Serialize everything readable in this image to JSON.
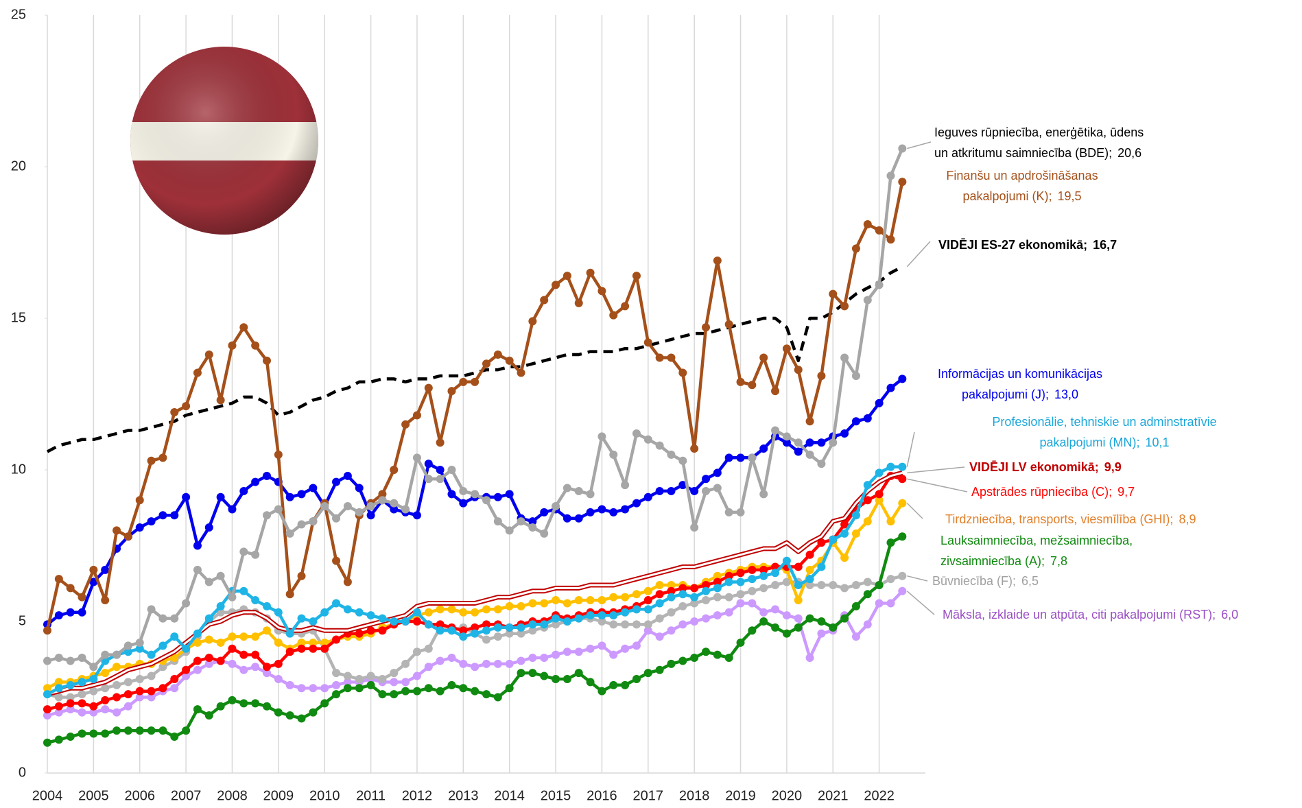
{
  "chart_data": {
    "type": "line",
    "x": [
      2004,
      2004.25,
      2004.5,
      2004.75,
      2005,
      2005.25,
      2005.5,
      2005.75,
      2006,
      2006.25,
      2006.5,
      2006.75,
      2007,
      2007.25,
      2007.5,
      2007.75,
      2008,
      2008.25,
      2008.5,
      2008.75,
      2009,
      2009.25,
      2009.5,
      2009.75,
      2010,
      2010.25,
      2010.5,
      2010.75,
      2011,
      2011.25,
      2011.5,
      2011.75,
      2012,
      2012.25,
      2012.5,
      2012.75,
      2013,
      2013.25,
      2013.5,
      2013.75,
      2014,
      2014.25,
      2014.5,
      2014.75,
      2015,
      2015.25,
      2015.5,
      2015.75,
      2016,
      2016.25,
      2016.5,
      2016.75,
      2017,
      2017.25,
      2017.5,
      2017.75,
      2018,
      2018.25,
      2018.5,
      2018.75,
      2019,
      2019.25,
      2019.5,
      2019.75,
      2020,
      2020.25,
      2020.5,
      2020.75,
      2021,
      2021.25,
      2021.5,
      2021.75,
      2022,
      2022.25,
      2022.5
    ],
    "xlim": [
      2004,
      2023
    ],
    "xticks": [
      2004,
      2005,
      2006,
      2007,
      2008,
      2009,
      2010,
      2011,
      2012,
      2013,
      2014,
      2015,
      2016,
      2017,
      2018,
      2019,
      2020,
      2021,
      2022
    ],
    "ylim": [
      0,
      25
    ],
    "yticks": [
      0,
      5,
      10,
      15,
      20,
      25
    ],
    "grid": "x",
    "series": [
      {
        "name": "Ieguves rūpniecība, enerģētika, ūdens\nun atkritumu saimniecība (BDE);",
        "end_label": "20,6",
        "color": "#a6a6a6",
        "label_color": "#000000",
        "markers": true,
        "line_style": "solid",
        "values": [
          3.7,
          3.8,
          3.7,
          3.8,
          3.5,
          3.9,
          3.9,
          4.2,
          4.3,
          5.4,
          5.1,
          5.1,
          5.6,
          6.7,
          6.3,
          6.5,
          5.8,
          7.3,
          7.2,
          8.5,
          8.7,
          7.9,
          8.2,
          8.3,
          8.8,
          8.4,
          8.8,
          8.6,
          8.8,
          9.0,
          8.9,
          8.7,
          10.4,
          9.7,
          9.7,
          10.0,
          9.3,
          9.2,
          9.0,
          8.3,
          8.0,
          8.3,
          8.1,
          7.9,
          8.8,
          9.4,
          9.3,
          9.2,
          11.1,
          10.5,
          9.5,
          11.2,
          11.0,
          10.8,
          10.5,
          10.3,
          8.1,
          9.3,
          9.4,
          8.6,
          8.6,
          10.4,
          9.2,
          11.3,
          11.1,
          10.9,
          10.5,
          10.2,
          10.9,
          13.7,
          13.1,
          15.6,
          16.1,
          19.7,
          20.6
        ]
      },
      {
        "name": "Finanšu un apdrošināšanas\npakalpojumi (K);",
        "end_label": "19,5",
        "color": "#a5501a",
        "label_color": "#a5501a",
        "markers": true,
        "line_style": "solid",
        "values": [
          4.7,
          6.4,
          6.1,
          5.8,
          6.7,
          5.7,
          8.0,
          7.8,
          9.0,
          10.3,
          10.4,
          11.9,
          12.1,
          13.2,
          13.8,
          12.3,
          14.1,
          14.7,
          14.1,
          13.6,
          10.5,
          5.9,
          6.5,
          8.3,
          8.9,
          7.0,
          6.3,
          8.5,
          8.9,
          9.2,
          10.0,
          11.5,
          11.8,
          12.7,
          10.9,
          12.6,
          12.9,
          12.9,
          13.5,
          13.8,
          13.6,
          13.2,
          14.9,
          15.6,
          16.1,
          16.4,
          15.5,
          16.5,
          15.9,
          15.1,
          15.4,
          16.4,
          14.2,
          13.7,
          13.7,
          13.2,
          10.7,
          14.7,
          16.9,
          14.8,
          12.9,
          12.8,
          13.7,
          12.6,
          14.0,
          13.3,
          11.6,
          13.1,
          15.8,
          15.4,
          17.3,
          18.1,
          17.9,
          17.6,
          19.5
        ]
      },
      {
        "name": "VIDĒJI ES-27 ekonomikā;",
        "end_label": "16,7",
        "color": "#000000",
        "label_color": "#000000",
        "markers": false,
        "line_style": "dashed",
        "values": [
          10.6,
          10.8,
          10.9,
          11.0,
          11.0,
          11.1,
          11.2,
          11.3,
          11.3,
          11.4,
          11.5,
          11.6,
          11.8,
          11.9,
          12.0,
          12.1,
          12.2,
          12.4,
          12.4,
          12.2,
          11.8,
          11.9,
          12.1,
          12.3,
          12.4,
          12.6,
          12.7,
          12.9,
          12.9,
          13.0,
          13.0,
          12.9,
          13.0,
          13.0,
          13.1,
          13.1,
          13.1,
          13.2,
          13.3,
          13.3,
          13.4,
          13.4,
          13.5,
          13.6,
          13.7,
          13.8,
          13.8,
          13.9,
          13.9,
          13.9,
          14.0,
          14.0,
          14.1,
          14.2,
          14.3,
          14.4,
          14.5,
          14.5,
          14.6,
          14.7,
          14.8,
          14.9,
          15.0,
          15.0,
          14.7,
          13.6,
          15.0,
          15.0,
          15.2,
          15.5,
          15.8,
          16.0,
          16.2,
          16.5,
          16.7
        ]
      },
      {
        "name": "Informācijas un komunikācijas\npakalpojumi (J);",
        "end_label": "13,0",
        "color": "#0000ee",
        "label_color": "#0000ee",
        "markers": true,
        "line_style": "solid",
        "values": [
          4.9,
          5.2,
          5.3,
          5.3,
          6.3,
          6.7,
          7.4,
          7.8,
          8.1,
          8.3,
          8.5,
          8.5,
          9.1,
          7.5,
          8.1,
          9.1,
          8.7,
          9.3,
          9.6,
          9.8,
          9.6,
          9.1,
          9.2,
          9.4,
          8.8,
          9.6,
          9.8,
          9.4,
          8.5,
          9.0,
          8.7,
          8.6,
          8.5,
          10.2,
          10.0,
          9.2,
          8.9,
          9.1,
          9.1,
          9.1,
          9.2,
          8.4,
          8.3,
          8.6,
          8.7,
          8.4,
          8.4,
          8.6,
          8.7,
          8.6,
          8.7,
          8.9,
          9.1,
          9.3,
          9.3,
          9.5,
          9.3,
          9.7,
          9.9,
          10.4,
          10.4,
          10.4,
          10.7,
          11.1,
          10.9,
          10.6,
          10.9,
          10.9,
          11.1,
          11.2,
          11.6,
          11.7,
          12.2,
          12.7,
          13.0
        ]
      },
      {
        "name": "Profesionālie, tehniskie un adminstratīvie\npakalpojumi (MN);",
        "end_label": "10,1",
        "color": "#1fb4e6",
        "label_color": "#1aa6d9",
        "markers": true,
        "line_style": "solid",
        "values": [
          2.6,
          2.8,
          2.9,
          3.0,
          3.1,
          3.7,
          3.9,
          4.0,
          4.1,
          3.9,
          4.2,
          4.5,
          4.1,
          4.6,
          5.1,
          5.5,
          6.0,
          6.0,
          5.7,
          5.5,
          5.3,
          4.6,
          5.1,
          5.0,
          5.3,
          5.6,
          5.4,
          5.3,
          5.2,
          5.1,
          5.0,
          5.0,
          5.3,
          4.9,
          4.7,
          4.7,
          4.5,
          4.6,
          4.7,
          4.8,
          4.8,
          4.8,
          4.9,
          4.9,
          5.1,
          5.0,
          5.1,
          5.2,
          5.2,
          5.2,
          5.3,
          5.4,
          5.4,
          5.6,
          5.8,
          5.9,
          5.8,
          6.0,
          6.1,
          6.3,
          6.3,
          6.4,
          6.5,
          6.6,
          7.0,
          6.2,
          6.4,
          6.8,
          7.7,
          7.9,
          8.5,
          9.5,
          9.9,
          10.1,
          10.1
        ]
      },
      {
        "name": "VIDĒJI LV ekonomikā;",
        "end_label": "9,9",
        "color": "#c00000",
        "label_color": "#c00000",
        "markers": false,
        "line_style": "double",
        "values": [
          2.6,
          2.7,
          2.8,
          2.8,
          2.9,
          3.0,
          3.2,
          3.4,
          3.5,
          3.6,
          3.8,
          4.0,
          4.3,
          4.6,
          4.9,
          5.0,
          5.2,
          5.3,
          5.3,
          5.1,
          4.8,
          4.7,
          4.7,
          4.8,
          4.7,
          4.7,
          4.7,
          4.8,
          4.9,
          5.0,
          5.1,
          5.2,
          5.5,
          5.6,
          5.6,
          5.6,
          5.6,
          5.6,
          5.7,
          5.8,
          5.8,
          5.9,
          6.0,
          6.0,
          6.1,
          6.1,
          6.1,
          6.2,
          6.2,
          6.2,
          6.3,
          6.4,
          6.5,
          6.6,
          6.7,
          6.8,
          6.8,
          6.9,
          7.0,
          7.1,
          7.2,
          7.3,
          7.4,
          7.4,
          7.6,
          7.3,
          7.6,
          7.8,
          8.3,
          8.4,
          8.9,
          9.3,
          9.6,
          9.8,
          9.9
        ]
      },
      {
        "name": "Apstrādes rūpniecība (C);",
        "end_label": "9,7",
        "color": "#ff0000",
        "label_color": "#ff0000",
        "markers": true,
        "line_style": "solid",
        "values": [
          2.1,
          2.2,
          2.3,
          2.3,
          2.2,
          2.4,
          2.5,
          2.6,
          2.7,
          2.7,
          2.8,
          3.1,
          3.4,
          3.7,
          3.8,
          3.7,
          4.1,
          3.9,
          3.9,
          3.5,
          3.6,
          4.0,
          4.1,
          4.1,
          4.1,
          4.4,
          4.6,
          4.6,
          4.7,
          4.7,
          4.9,
          5.0,
          5.0,
          4.9,
          4.9,
          4.8,
          4.7,
          4.8,
          4.9,
          4.9,
          4.8,
          4.9,
          5.0,
          5.0,
          5.2,
          5.1,
          5.2,
          5.3,
          5.3,
          5.3,
          5.4,
          5.5,
          5.7,
          5.9,
          6.0,
          6.1,
          6.1,
          6.2,
          6.3,
          6.5,
          6.6,
          6.7,
          6.7,
          6.8,
          6.8,
          6.8,
          7.2,
          7.6,
          7.7,
          8.2,
          8.7,
          9.0,
          9.2,
          9.8,
          9.7
        ]
      },
      {
        "name": "Tirdzniecība, transports, viesmīlība (GHI);",
        "end_label": "8,9",
        "color": "#ffc000",
        "label_color": "#e2802a",
        "markers": true,
        "line_style": "solid",
        "values": [
          2.8,
          3.0,
          3.0,
          3.1,
          3.2,
          3.3,
          3.5,
          3.5,
          3.6,
          3.6,
          3.7,
          3.8,
          4.1,
          4.3,
          4.4,
          4.3,
          4.5,
          4.5,
          4.5,
          4.7,
          4.3,
          4.1,
          4.3,
          4.3,
          4.3,
          4.4,
          4.5,
          4.5,
          4.6,
          4.8,
          4.9,
          5.0,
          5.2,
          5.3,
          5.4,
          5.4,
          5.3,
          5.3,
          5.4,
          5.4,
          5.5,
          5.5,
          5.6,
          5.6,
          5.7,
          5.6,
          5.7,
          5.7,
          5.7,
          5.8,
          5.8,
          5.9,
          6.0,
          6.2,
          6.2,
          6.2,
          6.1,
          6.3,
          6.5,
          6.6,
          6.7,
          6.8,
          6.8,
          6.8,
          6.7,
          5.7,
          6.7,
          7.0,
          7.6,
          7.1,
          7.9,
          8.3,
          9.0,
          8.3,
          8.9
        ]
      },
      {
        "name": "Lauksaimniecība, mežsaimniecība,\nzivsaimniecība (A);",
        "end_label": "7,8",
        "color": "#108a10",
        "label_color": "#108a10",
        "markers": true,
        "line_style": "solid",
        "values": [
          1.0,
          1.1,
          1.2,
          1.3,
          1.3,
          1.3,
          1.4,
          1.4,
          1.4,
          1.4,
          1.4,
          1.2,
          1.4,
          2.1,
          1.9,
          2.2,
          2.4,
          2.3,
          2.3,
          2.2,
          2.0,
          1.9,
          1.8,
          2.0,
          2.3,
          2.6,
          2.8,
          2.8,
          2.9,
          2.6,
          2.6,
          2.7,
          2.7,
          2.8,
          2.7,
          2.9,
          2.8,
          2.7,
          2.6,
          2.5,
          2.8,
          3.3,
          3.3,
          3.2,
          3.1,
          3.1,
          3.3,
          3.0,
          2.7,
          2.9,
          2.9,
          3.1,
          3.3,
          3.4,
          3.6,
          3.7,
          3.8,
          4.0,
          3.9,
          3.8,
          4.3,
          4.7,
          5.0,
          4.8,
          4.6,
          4.8,
          5.1,
          5.0,
          4.8,
          5.1,
          5.5,
          5.9,
          6.2,
          7.6,
          7.8
        ]
      },
      {
        "name": "Būvniecība (F);",
        "end_label": "6,5",
        "color": "#b4b4b4",
        "label_color": "#a0a0a0",
        "markers": true,
        "line_style": "solid",
        "values": [
          2.6,
          2.5,
          2.5,
          2.6,
          2.7,
          2.8,
          2.9,
          3.0,
          3.1,
          3.2,
          3.5,
          3.7,
          4.0,
          4.5,
          5.0,
          5.3,
          5.3,
          5.4,
          5.3,
          5.1,
          4.7,
          4.6,
          4.6,
          4.7,
          4.1,
          3.3,
          3.2,
          3.1,
          3.2,
          3.1,
          3.3,
          3.6,
          4.0,
          4.1,
          4.8,
          4.7,
          4.8,
          4.6,
          4.4,
          4.5,
          4.6,
          4.6,
          4.7,
          4.8,
          4.9,
          5.0,
          5.1,
          5.1,
          5.0,
          4.9,
          4.9,
          4.9,
          4.9,
          5.1,
          5.3,
          5.5,
          5.6,
          5.7,
          5.8,
          5.8,
          5.9,
          6.0,
          6.1,
          6.2,
          6.3,
          6.3,
          6.2,
          6.2,
          6.2,
          6.1,
          6.2,
          6.3,
          6.2,
          6.4,
          6.5
        ]
      },
      {
        "name": "Māksla, izklaide un atpūta, citi pakalpojumi (RST);",
        "end_label": "6,0",
        "color": "#cc99ff",
        "label_color": "#9b4fc4",
        "markers": true,
        "line_style": "solid",
        "values": [
          1.9,
          2.0,
          2.1,
          2.0,
          2.0,
          2.1,
          2.0,
          2.2,
          2.5,
          2.5,
          2.7,
          2.8,
          3.2,
          3.4,
          3.6,
          3.7,
          3.6,
          3.4,
          3.5,
          3.3,
          3.1,
          2.9,
          2.8,
          2.8,
          2.8,
          2.9,
          3.0,
          3.0,
          3.1,
          3.0,
          3.0,
          3.0,
          3.2,
          3.5,
          3.7,
          3.8,
          3.6,
          3.5,
          3.6,
          3.6,
          3.6,
          3.7,
          3.8,
          3.8,
          3.9,
          4.0,
          4.0,
          4.1,
          4.2,
          3.9,
          4.1,
          4.2,
          4.7,
          4.5,
          4.7,
          4.9,
          5.0,
          5.1,
          5.2,
          5.3,
          5.6,
          5.6,
          5.3,
          5.4,
          5.2,
          5.1,
          3.8,
          4.6,
          4.7,
          5.2,
          4.5,
          4.9,
          5.6,
          5.6,
          6.0
        ]
      }
    ]
  }
}
